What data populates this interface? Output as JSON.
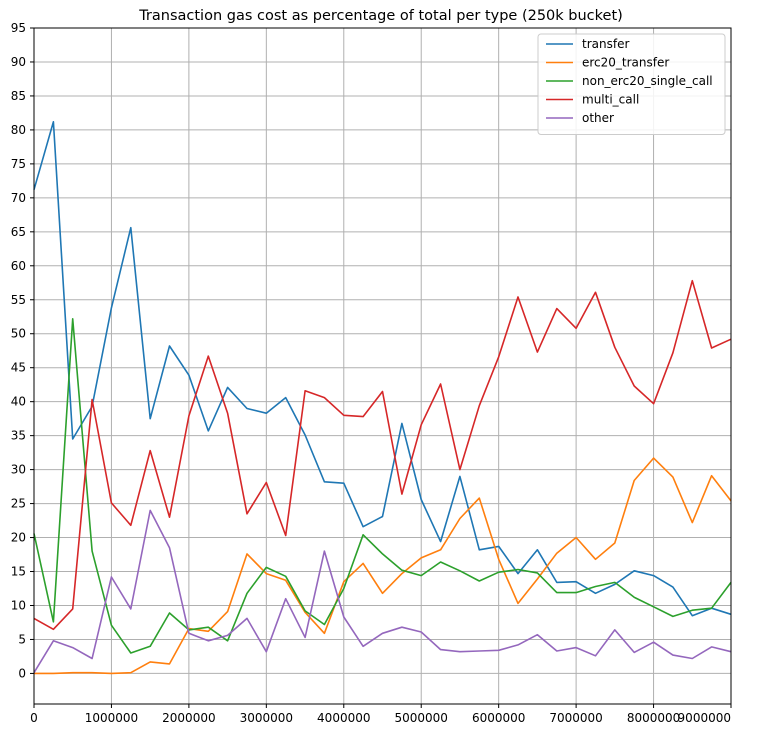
{
  "chart_data": {
    "type": "line",
    "title": "Transaction gas cost as percentage of total per type (250k bucket)",
    "xlabel": "",
    "ylabel": "",
    "xlim": [
      0,
      9000000
    ],
    "ylim": [
      -4.5,
      95
    ],
    "grid": true,
    "legend_position": "top-right",
    "x_ticks": [
      0,
      1000000,
      2000000,
      3000000,
      4000000,
      5000000,
      6000000,
      7000000,
      8000000,
      9000000
    ],
    "x_tick_labels": [
      "0",
      "1000000",
      "2000000",
      "3000000",
      "4000000",
      "5000000",
      "6000000",
      "7000000",
      "8000000",
      "9000000"
    ],
    "y_ticks": [
      0,
      5,
      10,
      15,
      20,
      25,
      30,
      35,
      40,
      45,
      50,
      55,
      60,
      65,
      70,
      75,
      80,
      85,
      90,
      95
    ],
    "y_tick_labels": [
      "0",
      "5",
      "10",
      "15",
      "20",
      "25",
      "30",
      "35",
      "40",
      "45",
      "50",
      "55",
      "60",
      "65",
      "70",
      "75",
      "80",
      "85",
      "90",
      "95"
    ],
    "x": [
      0,
      250000,
      500000,
      750000,
      1000000,
      1250000,
      1500000,
      1750000,
      2000000,
      2250000,
      2500000,
      2750000,
      3000000,
      3250000,
      3500000,
      3750000,
      4000000,
      4250000,
      4500000,
      4750000,
      5000000,
      5250000,
      5500000,
      5750000,
      6000000,
      6250000,
      6500000,
      6750000,
      7000000,
      7250000,
      7500000,
      7750000,
      8000000,
      8250000,
      8500000,
      8750000,
      9000000
    ],
    "series": [
      {
        "name": "transfer",
        "color": "#1f77b4",
        "values": [
          71.2,
          81.2,
          34.5,
          39.3,
          53.8,
          65.6,
          37.5,
          48.2,
          43.9,
          35.7,
          42.1,
          39.0,
          38.3,
          40.6,
          35.1,
          28.2,
          28.0,
          21.6,
          23.1,
          36.8,
          25.6,
          19.4,
          29.0,
          18.2,
          18.7,
          14.7,
          18.2,
          13.4,
          13.5,
          11.8,
          13.1,
          15.1,
          14.4,
          12.7,
          8.5,
          9.6,
          8.7
        ]
      },
      {
        "name": "erc20_transfer",
        "color": "#ff7f0e",
        "values": [
          0.0,
          0.0,
          0.1,
          0.1,
          0.0,
          0.1,
          1.7,
          1.4,
          6.6,
          6.2,
          9.1,
          17.6,
          14.7,
          13.7,
          9.0,
          5.9,
          13.5,
          16.2,
          11.8,
          14.7,
          17.0,
          18.2,
          22.8,
          25.8,
          16.8,
          10.3,
          13.9,
          17.7,
          20.0,
          16.8,
          19.2,
          28.4,
          31.7,
          28.9,
          22.2,
          29.1,
          25.4
        ]
      },
      {
        "name": "non_erc20_single_call",
        "color": "#2ca02c",
        "values": [
          20.6,
          7.6,
          52.2,
          18.0,
          7.1,
          3.0,
          4.0,
          8.9,
          6.4,
          6.8,
          4.8,
          11.8,
          15.6,
          14.3,
          9.2,
          7.2,
          12.5,
          20.4,
          17.6,
          15.2,
          14.4,
          16.4,
          15.1,
          13.6,
          14.9,
          15.3,
          14.8,
          11.9,
          11.9,
          12.8,
          13.4,
          11.2,
          9.8,
          8.4,
          9.3,
          9.6,
          13.4
        ]
      },
      {
        "name": "multi_call",
        "color": "#d62728",
        "values": [
          8.1,
          6.5,
          9.5,
          40.3,
          25.1,
          21.8,
          32.8,
          23.0,
          37.9,
          46.7,
          38.3,
          23.5,
          28.1,
          20.3,
          41.6,
          40.6,
          38.0,
          37.8,
          41.5,
          26.4,
          36.6,
          42.6,
          30.0,
          39.4,
          46.6,
          55.4,
          47.3,
          53.7,
          50.8,
          56.1,
          48.0,
          42.3,
          39.7,
          47.2,
          57.8,
          47.9,
          49.2
        ]
      },
      {
        "name": "other",
        "color": "#9467bd",
        "values": [
          0.1,
          4.8,
          3.8,
          2.2,
          14.2,
          9.5,
          24.0,
          18.5,
          5.9,
          4.8,
          5.6,
          8.1,
          3.2,
          11.0,
          5.3,
          18.0,
          8.3,
          4.0,
          5.9,
          6.8,
          6.1,
          3.5,
          3.2,
          3.3,
          3.4,
          4.2,
          5.7,
          3.3,
          3.8,
          2.6,
          6.4,
          3.1,
          4.6,
          2.7,
          2.2,
          3.9,
          3.2
        ]
      }
    ]
  }
}
